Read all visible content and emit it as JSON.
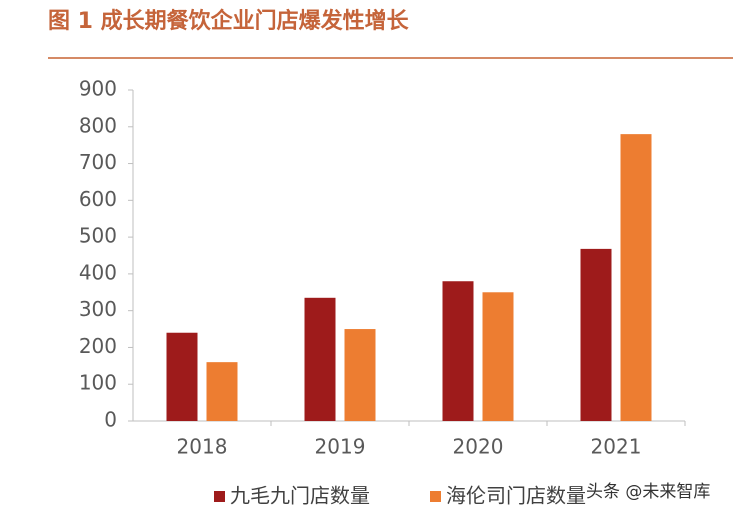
{
  "chart_data": {
    "type": "bar",
    "title": "图 1 成长期餐饮企业门店爆发性增长",
    "categories": [
      "2018",
      "2019",
      "2020",
      "2021"
    ],
    "series": [
      {
        "name": "九毛九门店数量",
        "color": "#9e1b1b",
        "values": [
          240,
          335,
          380,
          468
        ]
      },
      {
        "name": "海伦司门店数量",
        "color": "#ed7d31",
        "values": [
          160,
          250,
          350,
          780
        ]
      }
    ],
    "ylim": [
      0,
      900
    ],
    "yticks": [
      0,
      100,
      200,
      300,
      400,
      500,
      600,
      700,
      800,
      900
    ],
    "grid": false,
    "legend": "bottom",
    "watermark": "头条 @未来智库"
  }
}
